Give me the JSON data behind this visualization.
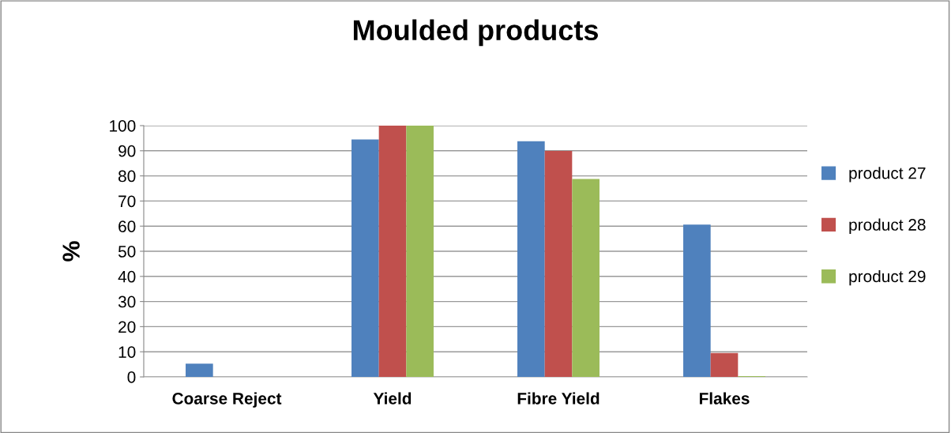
{
  "chart_data": {
    "type": "bar",
    "title": "Moulded products",
    "ylabel": "%",
    "categories": [
      "Coarse Reject",
      "Yield",
      "Fibre Yield",
      "Flakes"
    ],
    "series": [
      {
        "name": "product 27",
        "color": "#4f81bd",
        "values": [
          5.3,
          94.5,
          93.8,
          60.6
        ]
      },
      {
        "name": "product 28",
        "color": "#c0504d",
        "values": [
          0,
          100,
          89.9,
          9.5
        ]
      },
      {
        "name": "product 29",
        "color": "#9bbb59",
        "values": [
          0,
          100,
          78.8,
          0.3
        ]
      }
    ],
    "ylim": [
      0,
      100
    ],
    "yticks": [
      0,
      10,
      20,
      30,
      40,
      50,
      60,
      70,
      80,
      90,
      100
    ],
    "grid": "y",
    "legend": "right"
  }
}
